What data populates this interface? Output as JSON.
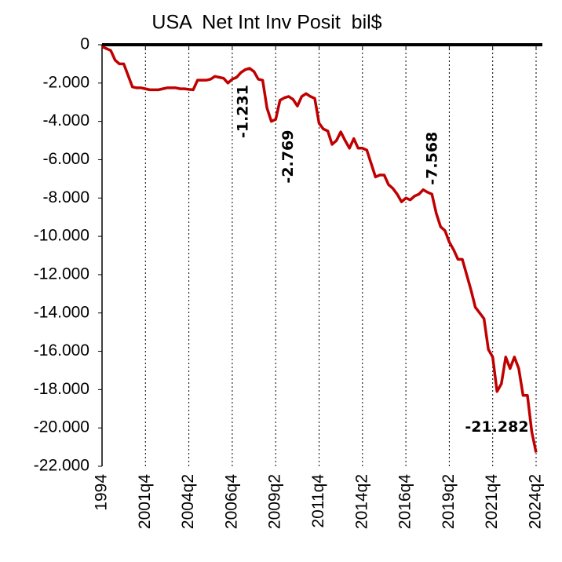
{
  "chart_data": {
    "type": "line",
    "title": "USA  Net Int Inv Posit  bil$",
    "categories": [
      "1994",
      null,
      null,
      null,
      null,
      null,
      null,
      null,
      null,
      null,
      "2001q4",
      null,
      null,
      null,
      null,
      null,
      null,
      null,
      null,
      null,
      "2004q2",
      null,
      null,
      null,
      null,
      null,
      null,
      null,
      null,
      null,
      "2006q4",
      null,
      null,
      null,
      null,
      null,
      null,
      null,
      null,
      null,
      "2009q2",
      null,
      null,
      null,
      null,
      null,
      null,
      null,
      null,
      null,
      "2011q4",
      null,
      null,
      null,
      null,
      null,
      null,
      null,
      null,
      null,
      "2014q2",
      null,
      null,
      null,
      null,
      null,
      null,
      null,
      null,
      null,
      "2016q4",
      null,
      null,
      null,
      null,
      null,
      null,
      null,
      null,
      null,
      "2019q2",
      null,
      null,
      null,
      null,
      null,
      null,
      null,
      null,
      null,
      "2021q4",
      null,
      null,
      null,
      null,
      null,
      null,
      null,
      null,
      null,
      "2024q2"
    ],
    "series": [
      {
        "color": "#c00000",
        "values": [
          -100,
          -200,
          -300,
          -800,
          -1000,
          -1000,
          -1600,
          -2200,
          -2250,
          -2250,
          -2300,
          -2350,
          -2350,
          -2350,
          -2300,
          -2250,
          -2250,
          -2250,
          -2300,
          -2300,
          -2330,
          -2350,
          -1850,
          -1850,
          -1850,
          -1800,
          -1650,
          -1700,
          -1750,
          -2000,
          -1800,
          -1700,
          -1450,
          -1300,
          -1231,
          -1400,
          -1800,
          -1850,
          -3300,
          -4000,
          -3900,
          -2900,
          -2769,
          -2700,
          -2850,
          -3200,
          -2700,
          -2550,
          -2700,
          -2800,
          -4100,
          -4400,
          -4500,
          -5200,
          -5000,
          -4550,
          -5000,
          -5400,
          -4900,
          -5400,
          -5400,
          -5500,
          -6200,
          -6900,
          -6800,
          -6800,
          -7300,
          -7500,
          -7800,
          -8200,
          -8000,
          -8100,
          -7900,
          -7800,
          -7568,
          -7700,
          -7800,
          -8800,
          -9500,
          -9700,
          -10300,
          -10700,
          -11200,
          -11200,
          -12000,
          -12800,
          -13700,
          -14000,
          -14300,
          -15900,
          -16300,
          -18100,
          -17700,
          -16300,
          -16900,
          -16300,
          -16900,
          -18300,
          -18300,
          -20200,
          -21282
        ],
        "value_labels": [
          null,
          null,
          null,
          null,
          null,
          null,
          null,
          null,
          null,
          null,
          null,
          null,
          null,
          null,
          null,
          null,
          null,
          null,
          null,
          null,
          null,
          null,
          null,
          null,
          null,
          null,
          null,
          null,
          null,
          null,
          null,
          null,
          null,
          null,
          "-1.231",
          null,
          null,
          null,
          null,
          null,
          null,
          null,
          "-2.769",
          null,
          null,
          null,
          null,
          null,
          null,
          null,
          null,
          null,
          null,
          null,
          null,
          null,
          null,
          null,
          null,
          null,
          null,
          null,
          null,
          null,
          null,
          null,
          null,
          null,
          null,
          null,
          null,
          null,
          null,
          null,
          "-7.568",
          null,
          null,
          null,
          null,
          null,
          null,
          null,
          null,
          null,
          null,
          null,
          null,
          null,
          null,
          null,
          null,
          null,
          null,
          null,
          null,
          null,
          null,
          null,
          null,
          null,
          "-21.282"
        ]
      }
    ],
    "ylim": [
      -22000,
      0
    ],
    "yticks": [
      0,
      {
        "value": -2000,
        "label": "-2.000"
      },
      {
        "value": -4000,
        "label": "-4.000"
      },
      {
        "value": -6000,
        "label": "-6.000"
      },
      {
        "value": -8000,
        "label": "-8.000"
      },
      {
        "value": -10000,
        "label": "-10.000"
      },
      {
        "value": -12000,
        "label": "-12.000"
      },
      {
        "value": -14000,
        "label": "-14.000"
      },
      {
        "value": -16000,
        "label": "-16.000"
      },
      {
        "value": -18000,
        "label": "-18.000"
      },
      {
        "value": -20000,
        "label": "-20.000"
      },
      {
        "value": -22000,
        "label": "-22.000"
      }
    ],
    "grid": "x-dotted"
  }
}
